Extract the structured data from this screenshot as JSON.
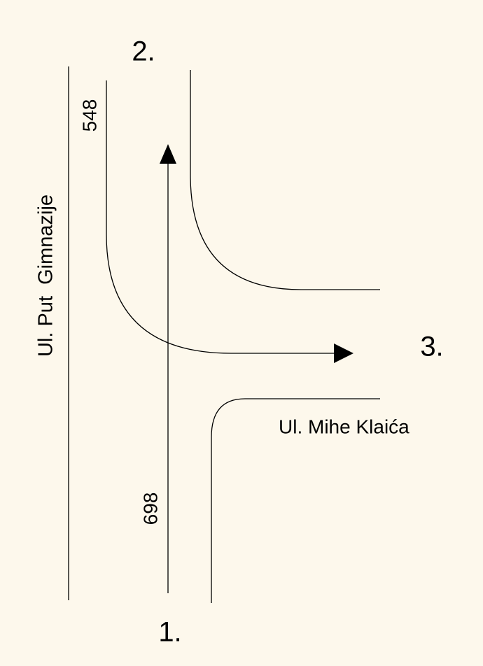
{
  "labels": {
    "exit_north": "2.",
    "exit_east": "3.",
    "entry_south": "1.",
    "count_left_turn": "548",
    "count_straight": "698"
  },
  "streets": {
    "vertical": "Ul. Put  Gimnazije",
    "horizontal": "Ul. Mihe Klaića"
  }
}
